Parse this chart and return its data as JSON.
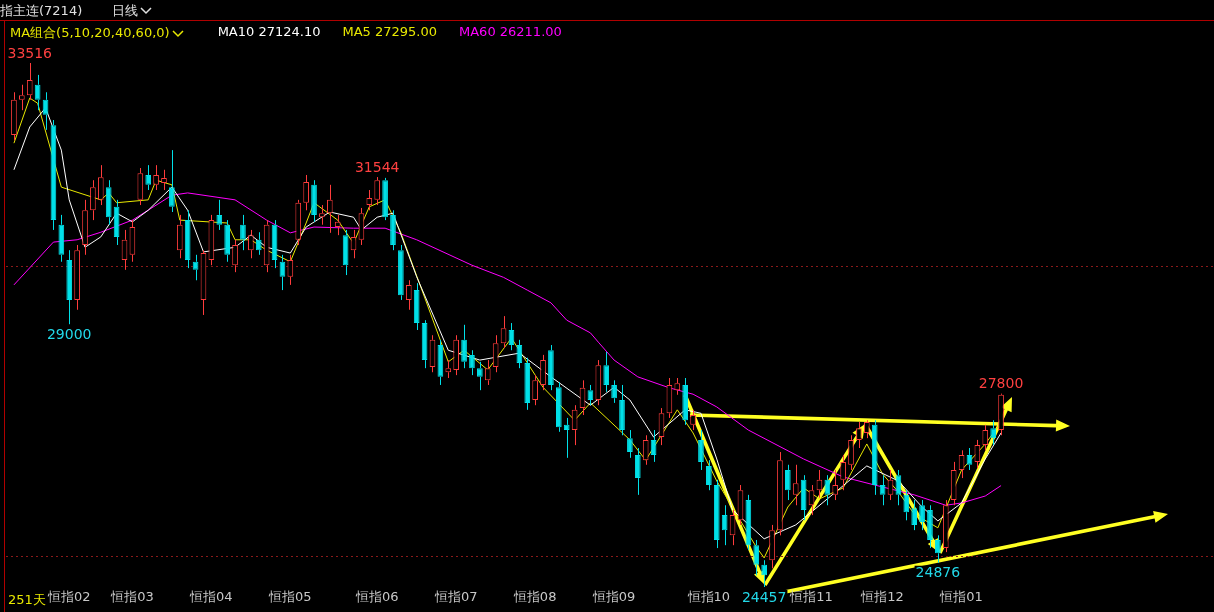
{
  "chart_data": {
    "type": "candlestick",
    "title": "指主连(7214)",
    "subtitle": "日线",
    "legend_title": "MA组合(5,10,20,40,60,0)",
    "legend": "top left",
    "grid": false,
    "marker": "none",
    "line_style": "solid",
    "tick_labels": "x",
    "categories": [
      null,
      null,
      null,
      null,
      null,
      null,
      null,
      "恒指02",
      null,
      null,
      null,
      null,
      null,
      null,
      null,
      "恒指03",
      null,
      null,
      null,
      null,
      null,
      null,
      null,
      null,
      null,
      "恒指04",
      null,
      null,
      null,
      null,
      null,
      null,
      null,
      null,
      null,
      "恒指05",
      null,
      null,
      null,
      null,
      null,
      null,
      null,
      null,
      null,
      null,
      "恒指06",
      null,
      null,
      null,
      null,
      null,
      null,
      null,
      null,
      null,
      "恒指07",
      null,
      null,
      null,
      null,
      null,
      null,
      null,
      null,
      null,
      "恒指08",
      null,
      null,
      null,
      null,
      null,
      null,
      null,
      null,
      null,
      "恒指09",
      null,
      null,
      null,
      null,
      null,
      null,
      null,
      null,
      null,
      null,
      null,
      "恒指10",
      null,
      null,
      null,
      null,
      null,
      null,
      null,
      null,
      null,
      null,
      null,
      null,
      "恒指11",
      null,
      null,
      null,
      null,
      null,
      null,
      null,
      null,
      "恒指12",
      null,
      null,
      null,
      null,
      null,
      null,
      null,
      null,
      null,
      "恒指01",
      null,
      null,
      null,
      null,
      null
    ],
    "ohlc": [
      [
        32270,
        33010,
        32180,
        32880
      ],
      [
        32880,
        33140,
        32700,
        32960
      ],
      [
        32960,
        33516,
        32880,
        33220
      ],
      [
        33140,
        33310,
        32700,
        32880
      ],
      [
        32880,
        33010,
        32360,
        32620
      ],
      [
        32440,
        32530,
        30630,
        30800
      ],
      [
        30720,
        30890,
        30080,
        30200
      ],
      [
        30110,
        30280,
        29000,
        29420
      ],
      [
        29420,
        30370,
        29250,
        30280
      ],
      [
        30370,
        31150,
        30200,
        30970
      ],
      [
        30970,
        31490,
        30800,
        31370
      ],
      [
        31150,
        31750,
        31060,
        31540
      ],
      [
        31370,
        31490,
        30720,
        30850
      ],
      [
        31030,
        31150,
        30370,
        30510
      ],
      [
        30110,
        30630,
        29940,
        30460
      ],
      [
        30200,
        30800,
        30080,
        30680
      ],
      [
        31150,
        31700,
        31060,
        31610
      ],
      [
        31580,
        31750,
        31320,
        31410
      ],
      [
        31410,
        31750,
        31320,
        31580
      ],
      [
        31440,
        31670,
        31320,
        31530
      ],
      [
        31370,
        32010,
        30940,
        31030
      ],
      [
        30280,
        30890,
        30140,
        30720
      ],
      [
        30800,
        30970,
        29970,
        30110
      ],
      [
        30080,
        30200,
        29760,
        29940
      ],
      [
        29420,
        30280,
        29160,
        30230
      ],
      [
        30110,
        30890,
        30020,
        30800
      ],
      [
        30890,
        31150,
        30630,
        30720
      ],
      [
        30720,
        30800,
        30080,
        30200
      ],
      [
        30020,
        30460,
        29900,
        30370
      ],
      [
        30720,
        30890,
        30280,
        30460
      ],
      [
        30280,
        30630,
        30140,
        30540
      ],
      [
        30460,
        30590,
        30200,
        30280
      ],
      [
        30020,
        30800,
        29900,
        30720
      ],
      [
        30720,
        30800,
        29970,
        30110
      ],
      [
        30080,
        30200,
        29590,
        29820
      ],
      [
        29820,
        30200,
        29680,
        30110
      ],
      [
        30460,
        31150,
        30370,
        31100
      ],
      [
        31100,
        31580,
        30970,
        31460
      ],
      [
        31410,
        31490,
        30770,
        30890
      ],
      [
        30850,
        31060,
        30720,
        30920
      ],
      [
        30920,
        31410,
        30580,
        31150
      ],
      [
        30680,
        30890,
        30540,
        30770
      ],
      [
        30540,
        30630,
        29850,
        30020
      ],
      [
        30280,
        30630,
        30140,
        30510
      ],
      [
        30460,
        31010,
        30370,
        30920
      ],
      [
        31060,
        31320,
        30970,
        31180
      ],
      [
        31150,
        31544,
        31060,
        31490
      ],
      [
        31490,
        31530,
        30800,
        30850
      ],
      [
        30890,
        30970,
        30280,
        30370
      ],
      [
        30280,
        30370,
        29420,
        29500
      ],
      [
        29420,
        29760,
        29250,
        29680
      ],
      [
        29590,
        29710,
        28900,
        29020
      ],
      [
        29020,
        29070,
        28240,
        28380
      ],
      [
        28260,
        28810,
        28170,
        28730
      ],
      [
        28640,
        28730,
        27950,
        28090
      ],
      [
        28170,
        28380,
        28070,
        28240
      ],
      [
        28210,
        28810,
        28120,
        28730
      ],
      [
        28730,
        28990,
        28240,
        28350
      ],
      [
        28470,
        28550,
        28120,
        28240
      ],
      [
        28240,
        28350,
        27860,
        28090
      ],
      [
        28030,
        28380,
        27950,
        28240
      ],
      [
        28260,
        28810,
        28170,
        28670
      ],
      [
        28670,
        29140,
        28590,
        28930
      ],
      [
        28900,
        29020,
        28550,
        28640
      ],
      [
        28640,
        28730,
        28240,
        28330
      ],
      [
        28330,
        28420,
        27520,
        27640
      ],
      [
        27690,
        28120,
        27600,
        28030
      ],
      [
        27950,
        28470,
        27860,
        28380
      ],
      [
        28550,
        28640,
        27860,
        27950
      ],
      [
        27910,
        28000,
        27140,
        27220
      ],
      [
        27260,
        27380,
        26690,
        27170
      ],
      [
        27170,
        27600,
        26910,
        27520
      ],
      [
        27550,
        28030,
        27430,
        27900
      ],
      [
        27860,
        27950,
        27600,
        27690
      ],
      [
        27690,
        28380,
        27600,
        28290
      ],
      [
        28290,
        28520,
        27830,
        27950
      ],
      [
        27950,
        28030,
        27640,
        27720
      ],
      [
        27690,
        27950,
        27080,
        27170
      ],
      [
        27030,
        27170,
        26690,
        26790
      ],
      [
        26740,
        26860,
        26050,
        26340
      ],
      [
        26650,
        27080,
        26570,
        27000
      ],
      [
        27000,
        27170,
        26620,
        26740
      ],
      [
        27050,
        27550,
        26910,
        27460
      ],
      [
        27460,
        28070,
        27380,
        27950
      ],
      [
        27860,
        28070,
        27780,
        27980
      ],
      [
        27950,
        28070,
        27260,
        27340
      ],
      [
        27260,
        27520,
        27170,
        27430
      ],
      [
        27000,
        27170,
        26480,
        26620
      ],
      [
        26550,
        26650,
        26130,
        26220
      ],
      [
        26220,
        26310,
        25130,
        25270
      ],
      [
        25700,
        25870,
        25180,
        25440
      ],
      [
        25350,
        25790,
        25180,
        25700
      ],
      [
        25610,
        26220,
        25530,
        26130
      ],
      [
        25960,
        26050,
        25100,
        25180
      ],
      [
        25180,
        25270,
        24660,
        24840
      ],
      [
        24840,
        24920,
        24457,
        24660
      ],
      [
        24920,
        25530,
        24780,
        25440
      ],
      [
        25440,
        26790,
        25350,
        26650
      ],
      [
        26480,
        26570,
        25960,
        26130
      ],
      [
        26050,
        26570,
        25870,
        26250
      ],
      [
        26310,
        26390,
        25610,
        25790
      ],
      [
        25870,
        26220,
        25700,
        26130
      ],
      [
        26130,
        26480,
        26000,
        26310
      ],
      [
        26310,
        26390,
        25870,
        26050
      ],
      [
        26050,
        26480,
        25960,
        26220
      ],
      [
        26310,
        26740,
        26130,
        26620
      ],
      [
        26570,
        27080,
        26480,
        27000
      ],
      [
        27000,
        27310,
        26860,
        27200
      ],
      [
        27120,
        27340,
        27030,
        27310
      ],
      [
        27260,
        27340,
        26050,
        26220
      ],
      [
        26220,
        26390,
        25870,
        26050
      ],
      [
        26050,
        26480,
        25960,
        26310
      ],
      [
        26390,
        26480,
        25870,
        26050
      ],
      [
        26050,
        26130,
        25610,
        25750
      ],
      [
        25820,
        25960,
        25440,
        25530
      ],
      [
        25870,
        25960,
        25440,
        25580
      ],
      [
        25790,
        25870,
        25130,
        25270
      ],
      [
        25270,
        25350,
        24876,
        25040
      ],
      [
        25130,
        25960,
        25060,
        25870
      ],
      [
        25960,
        26620,
        25870,
        26480
      ],
      [
        26480,
        26820,
        26340,
        26740
      ],
      [
        26740,
        26860,
        26480,
        26570
      ],
      [
        26620,
        27000,
        26510,
        26910
      ],
      [
        26910,
        27260,
        26820,
        27170
      ],
      [
        27200,
        27340,
        26910,
        27030
      ],
      [
        27170,
        27800,
        27080,
        27780
      ]
    ],
    "series": [
      {
        "type": "line",
        "name": "MA10 27124.10",
        "color": "#ffffff",
        "values": [
          31670,
          null,
          32410,
          null,
          32740,
          null,
          32010,
          31150,
          null,
          30330,
          null,
          30510,
          null,
          30920,
          null,
          30770,
          null,
          30970,
          null,
          null,
          31370,
          null,
          30970,
          null,
          30250,
          null,
          null,
          null,
          30330,
          null,
          30540,
          null,
          30330,
          null,
          null,
          30230,
          null,
          30680,
          null,
          null,
          30940,
          null,
          null,
          30850,
          30630,
          null,
          30850,
          null,
          30920,
          null,
          null,
          29820,
          null,
          null,
          null,
          28550,
          null,
          null,
          null,
          28380,
          null,
          null,
          null,
          null,
          28500,
          null,
          null,
          null,
          28090,
          null,
          null,
          null,
          null,
          27600,
          null,
          null,
          27910,
          null,
          27690,
          null,
          null,
          27050,
          null,
          null,
          null,
          27520,
          null,
          27460,
          null,
          26670,
          null,
          25790,
          null,
          null,
          null,
          25290,
          null,
          null,
          null,
          25530,
          null,
          null,
          null,
          25980,
          null,
          null,
          null,
          null,
          26550,
          null,
          null,
          null,
          26290,
          null,
          null,
          25840,
          null,
          25600,
          null,
          null,
          25910,
          null,
          null,
          26670,
          null,
          27120
        ]
      },
      {
        "type": "line",
        "name": "MA5 27295.00",
        "color": "#e8e800",
        "values": [
          32130,
          null,
          32910,
          32820,
          null,
          null,
          31370,
          null,
          null,
          null,
          null,
          31150,
          31270,
          31100,
          null,
          null,
          null,
          31150,
          31490,
          null,
          31410,
          30800,
          null,
          null,
          null,
          null,
          null,
          30750,
          30460,
          null,
          30460,
          null,
          30280,
          null,
          null,
          30080,
          null,
          30750,
          31100,
          null,
          null,
          30800,
          null,
          30400,
          null,
          31030,
          null,
          31150,
          null,
          30580,
          null,
          null,
          null,
          null,
          null,
          28350,
          null,
          28550,
          null,
          null,
          28210,
          null,
          null,
          28760,
          null,
          null,
          null,
          27910,
          null,
          null,
          null,
          27340,
          null,
          27640,
          null,
          null,
          null,
          null,
          27000,
          null,
          26650,
          null,
          null,
          null,
          27520,
          null,
          27120,
          null,
          null,
          26290,
          null,
          null,
          25600,
          null,
          25150,
          24960,
          null,
          null,
          25840,
          null,
          26170,
          null,
          25980,
          null,
          null,
          26170,
          null,
          null,
          26930,
          null,
          26410,
          null,
          26100,
          null,
          25720,
          null,
          null,
          25480,
          null,
          null,
          26480,
          null,
          null,
          26930,
          null,
          27300
        ]
      },
      {
        "type": "line",
        "name": "MA60 26211.00",
        "color": "#ff00ff",
        "values": [
          29680,
          null,
          null,
          null,
          null,
          30420,
          null,
          null,
          30460,
          null,
          null,
          30590,
          null,
          null,
          null,
          30800,
          null,
          null,
          null,
          null,
          31230,
          null,
          31270,
          null,
          null,
          null,
          null,
          null,
          31150,
          null,
          null,
          null,
          30800,
          null,
          null,
          30580,
          null,
          null,
          30680,
          null,
          null,
          null,
          null,
          30660,
          null,
          null,
          null,
          30660,
          null,
          null,
          null,
          30460,
          null,
          null,
          null,
          null,
          null,
          null,
          30020,
          null,
          null,
          null,
          29810,
          null,
          null,
          29590,
          null,
          null,
          29370,
          null,
          29070,
          null,
          null,
          28850,
          28690,
          null,
          28380,
          null,
          null,
          28090,
          null,
          null,
          null,
          27900,
          null,
          null,
          27790,
          null,
          null,
          27570,
          null,
          null,
          null,
          27170,
          null,
          null,
          null,
          null,
          null,
          null,
          26670,
          null,
          null,
          null,
          null,
          26360,
          null,
          null,
          null,
          26220,
          null,
          null,
          null,
          null,
          26050,
          null,
          null,
          null,
          25870,
          null,
          25910,
          null,
          null,
          26030,
          null,
          26210
        ]
      }
    ],
    "ref_lines": [
      {
        "axis": "y",
        "value": 30000,
        "color": "#8b1a1a",
        "line_style": "dotted"
      },
      {
        "axis": "y",
        "value": 25000,
        "color": "#8b1a1a",
        "line_style": "dotted"
      }
    ],
    "annotations": [
      {
        "text": "33516",
        "y": 33516
      },
      {
        "text": "29000",
        "y": 29000
      },
      {
        "text": "31544",
        "y": 31544
      },
      {
        "text": "24457",
        "y": 24457
      },
      {
        "text": "24876",
        "y": 24876
      },
      {
        "text": "27800",
        "y": 27800
      },
      "251天"
    ]
  }
}
